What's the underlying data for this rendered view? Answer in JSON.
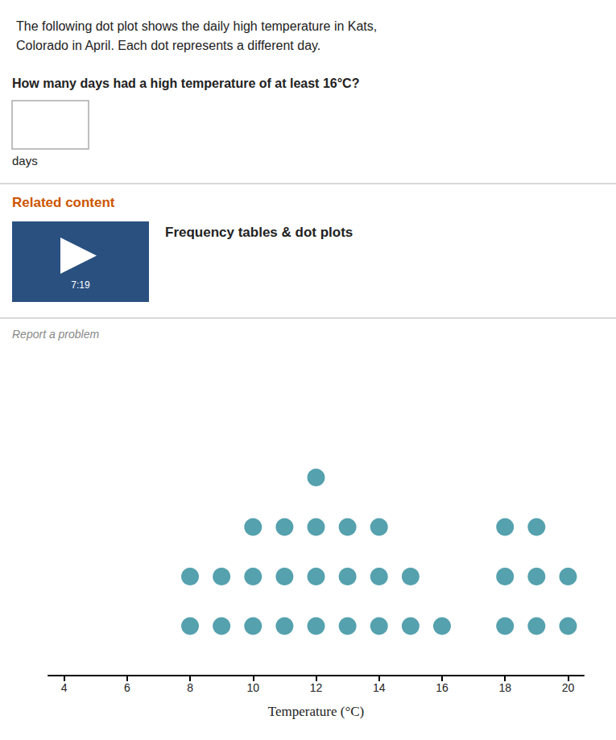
{
  "chart_data": {
    "type": "dot_plot",
    "title": "The following dot plot shows the daily high temperature in Kats,\nColorado in April. Each dot represents a different day.",
    "annotations": [
      "How many days had a high temperature of at least 16°C?",
      "days",
      "Related content",
      "Frequency tables & dot plots",
      "7:19",
      "Report a problem"
    ],
    "xlabel": "Temperature (°C)",
    "x": [
      8,
      9,
      10,
      11,
      12,
      13,
      14,
      15,
      16,
      17,
      18,
      19,
      20
    ],
    "values": [
      2,
      2,
      3,
      3,
      4,
      3,
      3,
      2,
      1,
      0,
      3,
      3,
      2
    ],
    "color": "#2a8a9a",
    "xlim": [
      3.5,
      20.5
    ],
    "xticks": [
      4,
      6,
      8,
      10,
      12,
      14,
      16,
      18,
      20
    ],
    "ylim": [
      0,
      6
    ],
    "tick_labels": "x",
    "grid": false
  }
}
